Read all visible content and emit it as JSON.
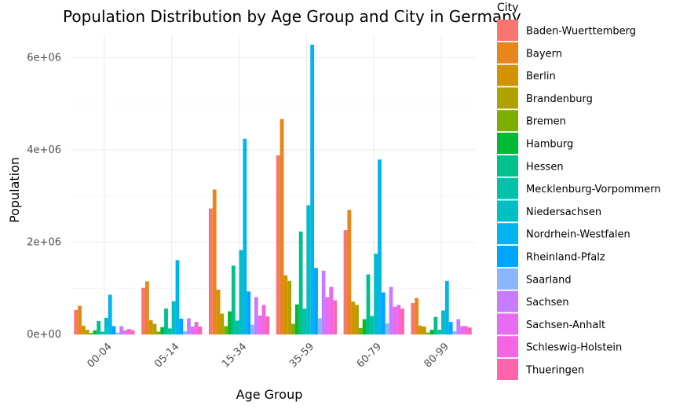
{
  "chart_data": {
    "type": "bar",
    "title": "Population Distribution by Age Group and City in Germany",
    "xlabel": "Age Group",
    "ylabel": "Population",
    "ylim": [
      0,
      6500000
    ],
    "yticks": [
      0,
      2000000,
      4000000,
      6000000
    ],
    "ytick_labels": [
      "0e+00",
      "2e+06",
      "4e+06",
      "6e+06"
    ],
    "grid": true,
    "legend_title": "City",
    "legend_position": "right",
    "categories": [
      "00-04",
      "05-14",
      "15-34",
      "35-59",
      "60-79",
      "80-99"
    ],
    "series": [
      {
        "name": "Baden-Wuerttemberg",
        "color": "#F8766D",
        "values": [
          530000,
          1010000,
          2730000,
          3880000,
          2260000,
          680000
        ]
      },
      {
        "name": "Bayern",
        "color": "#E7861B",
        "values": [
          620000,
          1150000,
          3140000,
          4670000,
          2700000,
          790000
        ]
      },
      {
        "name": "Berlin",
        "color": "#D39200",
        "values": [
          190000,
          310000,
          970000,
          1280000,
          710000,
          190000
        ]
      },
      {
        "name": "Brandenburg",
        "color": "#AFA100",
        "values": [
          100000,
          230000,
          450000,
          1160000,
          640000,
          170000
        ]
      },
      {
        "name": "Bremen",
        "color": "#7CAE00",
        "values": [
          30000,
          60000,
          180000,
          230000,
          140000,
          40000
        ]
      },
      {
        "name": "Hamburg",
        "color": "#00BA38",
        "values": [
          90000,
          160000,
          500000,
          650000,
          330000,
          100000
        ]
      },
      {
        "name": "Hessen",
        "color": "#00C08B",
        "values": [
          290000,
          560000,
          1490000,
          2230000,
          1300000,
          380000
        ]
      },
      {
        "name": "Mecklenburg-Vorpommern",
        "color": "#00C1AA",
        "values": [
          60000,
          130000,
          300000,
          560000,
          400000,
          100000
        ]
      },
      {
        "name": "Niedersachsen",
        "color": "#00BFC4",
        "values": [
          360000,
          720000,
          1830000,
          2800000,
          1750000,
          520000
        ]
      },
      {
        "name": "Nordrhein-Westfalen",
        "color": "#00B4F0",
        "values": [
          860000,
          1610000,
          4240000,
          6280000,
          3790000,
          1160000
        ]
      },
      {
        "name": "Rheinland-Pfalz",
        "color": "#00A5FF",
        "values": [
          180000,
          340000,
          930000,
          1440000,
          910000,
          270000
        ]
      },
      {
        "name": "Saarland",
        "color": "#8AB6FF",
        "values": [
          40000,
          70000,
          210000,
          350000,
          240000,
          70000
        ]
      },
      {
        "name": "Sachsen",
        "color": "#C77CFF",
        "values": [
          180000,
          350000,
          810000,
          1380000,
          1030000,
          330000
        ]
      },
      {
        "name": "Sachsen-Anhalt",
        "color": "#E76BF3",
        "values": [
          90000,
          170000,
          410000,
          810000,
          600000,
          180000
        ]
      },
      {
        "name": "Schleswig-Holstein",
        "color": "#F564E3",
        "values": [
          120000,
          270000,
          640000,
          1030000,
          640000,
          180000
        ]
      },
      {
        "name": "Thueringen",
        "color": "#FF65AC",
        "values": [
          90000,
          170000,
          390000,
          740000,
          560000,
          150000
        ]
      }
    ]
  }
}
